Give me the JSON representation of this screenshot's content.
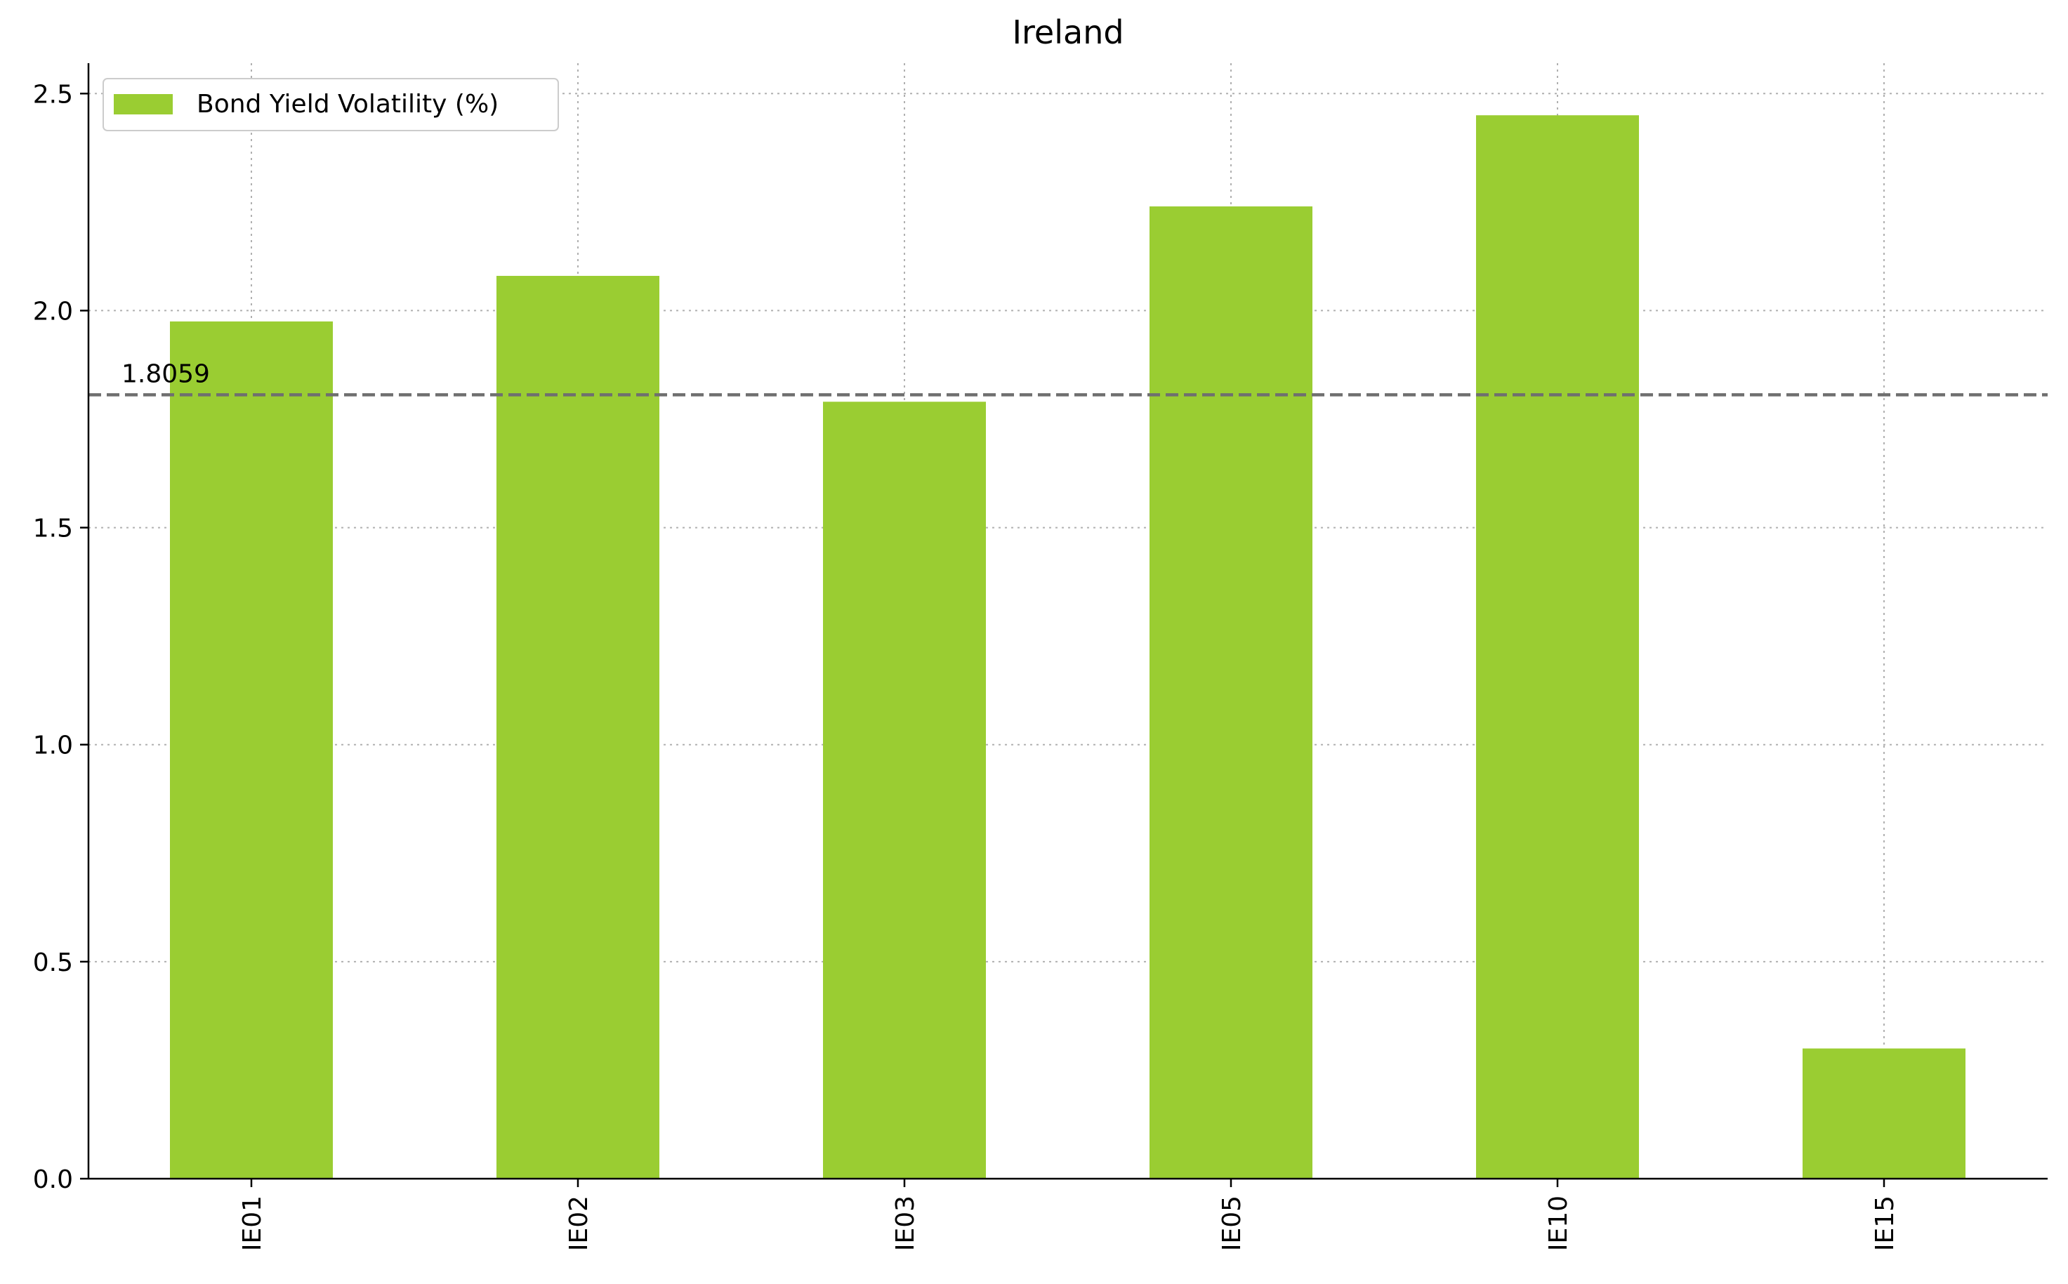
{
  "chart_data": {
    "type": "bar",
    "title": "Ireland",
    "xlabel": "",
    "ylabel": "",
    "categories": [
      "IE01",
      "IE02",
      "IE03",
      "IE05",
      "IE10",
      "IE15"
    ],
    "series": [
      {
        "name": "Bond Yield Volatility (%)",
        "values": [
          1.975,
          2.08,
          1.79,
          2.24,
          2.45,
          0.3
        ],
        "color": "#9acd32"
      }
    ],
    "reference_line": {
      "value": 1.8059,
      "label": "1.8059",
      "color": "#6f6f6f",
      "style": "dashed"
    },
    "ylim": [
      0,
      2.57
    ],
    "yticks": [
      "0.0",
      "0.5",
      "1.0",
      "1.5",
      "2.0",
      "2.5"
    ],
    "grid": true,
    "legend_position": "top-left"
  }
}
